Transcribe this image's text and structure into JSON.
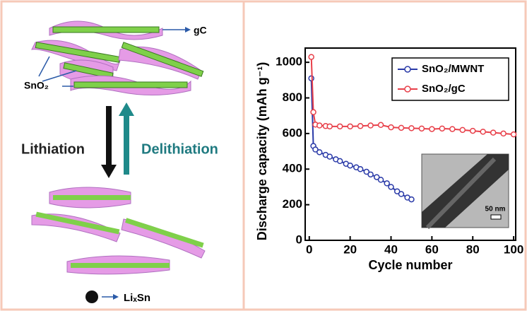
{
  "chart_data": {
    "type": "line",
    "xlabel": "Cycle number",
    "ylabel": "Discharge capacity (mAh g⁻¹)",
    "xlim": [
      -2,
      101
    ],
    "ylim": [
      0,
      1080
    ],
    "xticks": [
      0,
      20,
      40,
      60,
      80,
      100
    ],
    "yticks": [
      0,
      200,
      400,
      600,
      800,
      1000
    ],
    "legend": "upper right",
    "inset_label": "50 nm",
    "series": [
      {
        "name": "SnO₂/MWNT",
        "color": "#2a3aa8",
        "x": [
          1,
          2,
          3,
          5,
          8,
          10,
          13,
          15,
          18,
          20,
          23,
          25,
          28,
          30,
          33,
          35,
          38,
          40,
          43,
          45,
          48,
          50
        ],
        "values": [
          910,
          530,
          510,
          495,
          480,
          470,
          455,
          445,
          430,
          420,
          410,
          400,
          385,
          370,
          355,
          340,
          320,
          300,
          275,
          260,
          240,
          230
        ]
      },
      {
        "name": "SnO₂/gC",
        "color": "#e8404a",
        "x": [
          1,
          2,
          3,
          5,
          8,
          10,
          15,
          20,
          25,
          30,
          35,
          40,
          45,
          50,
          55,
          60,
          65,
          70,
          75,
          80,
          85,
          90,
          95,
          100
        ],
        "values": [
          1030,
          720,
          650,
          645,
          642,
          640,
          640,
          640,
          642,
          645,
          648,
          635,
          632,
          630,
          628,
          625,
          628,
          625,
          620,
          615,
          610,
          605,
          600,
          595
        ]
      }
    ]
  },
  "schematic": {
    "gc_label": "gC",
    "sno2_label": "SnO₂",
    "lithiation": "Lithiation",
    "delithiation": "Delithiation",
    "lixsn_label": "LiₓSn"
  }
}
